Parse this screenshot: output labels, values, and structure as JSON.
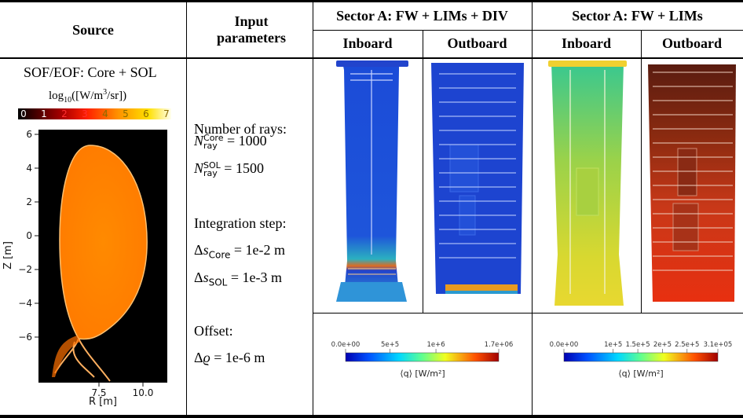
{
  "headers": {
    "source": "Source",
    "input": "Input parameters",
    "sector_a_div": "Sector A: FW + LIMs + DIV",
    "sector_a": "Sector A: FW + LIMs",
    "inboard": "Inboard",
    "outboard": "Outboard"
  },
  "source": {
    "title": "SOF/EOF: Core + SOL",
    "colorbar_label": "log10([W/m3/sr])",
    "colorbar_ticks": [
      "0",
      "1",
      "2",
      "3",
      "4",
      "5",
      "6",
      "7"
    ],
    "y_axis_label": "Z [m]",
    "x_axis_label": "R [m]",
    "y_ticks": [
      "6",
      "4",
      "2",
      "0",
      "−2",
      "−4",
      "−6"
    ],
    "x_ticks": [
      "7.5",
      "10.0"
    ]
  },
  "params": {
    "rays_title": "Number of rays:",
    "rays_core": "N_ray^Core = 1000",
    "rays_sol": "N_ray^SOL = 1500",
    "step_title": "Integration step:",
    "step_core": "Δs_Core = 1e-2 m",
    "step_sol": "Δs_SOL = 1e-3 m",
    "offset_title": "Offset:",
    "offset_val": "Δϱ = 1e-6 m"
  },
  "colorbars": {
    "div": {
      "ticks": [
        "0.0e+00",
        "5e+5",
        "1e+6",
        "1.7e+06"
      ],
      "label": "⟨q⟩ [W/m²]"
    },
    "nodiv": {
      "ticks": [
        "0.0e+00",
        "1e+5",
        "1.5e+5",
        "2e+5",
        "2.5e+5",
        "3.1e+05"
      ],
      "label": "⟨q⟩ [W/m²]"
    }
  }
}
